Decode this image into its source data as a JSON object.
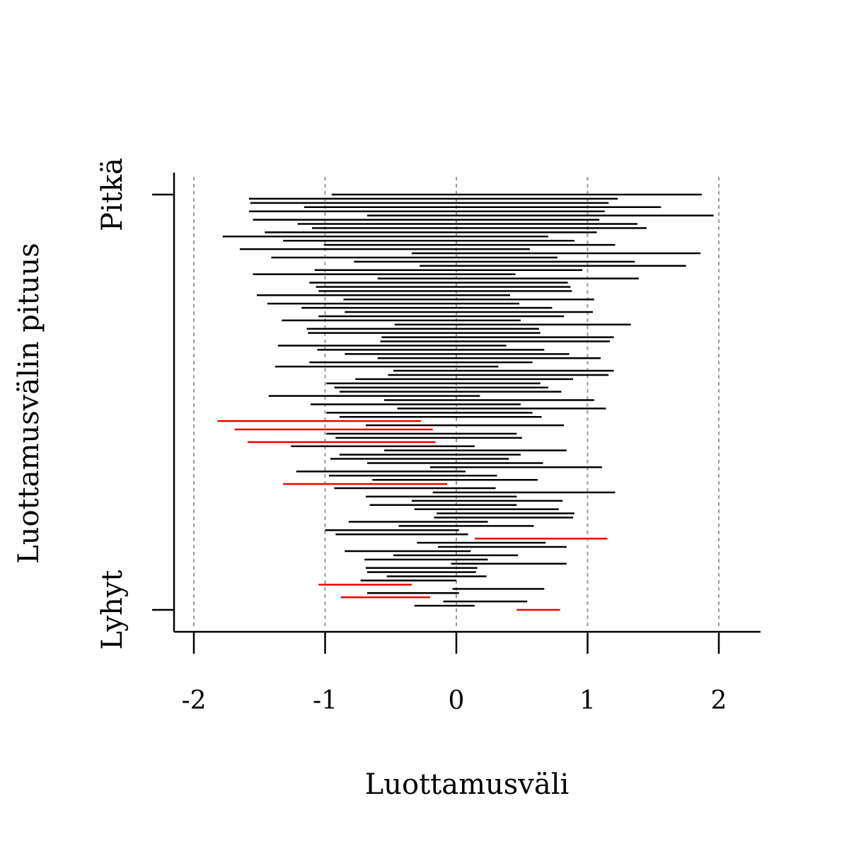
{
  "chart_data": {
    "type": "interval",
    "title": "",
    "xlabel": "Luottamusväli",
    "ylabel": "Luottamusvälin pituus",
    "xlim": [
      -2.15,
      2.32
    ],
    "xticks": [
      -2,
      -1,
      0,
      1,
      2
    ],
    "xtick_labels": [
      "-2",
      "-1",
      "0",
      "1",
      "2"
    ],
    "y_end_labels": {
      "long": "Pitkä",
      "short": "Lyhyt"
    },
    "grid": "vertical dotted at x ticks",
    "colors": {
      "covers_zero": "#000000",
      "misses_zero": "#ee0000",
      "grid": "#999999"
    },
    "intervals": [
      {
        "lo": -0.95,
        "hi": 1.87
      },
      {
        "lo": -1.58,
        "hi": 1.23
      },
      {
        "lo": -1.57,
        "hi": 1.16
      },
      {
        "lo": -1.16,
        "hi": 1.56
      },
      {
        "lo": -1.58,
        "hi": 1.13
      },
      {
        "lo": -0.68,
        "hi": 1.96
      },
      {
        "lo": -1.55,
        "hi": 1.09
      },
      {
        "lo": -1.21,
        "hi": 1.38
      },
      {
        "lo": -1.1,
        "hi": 1.45
      },
      {
        "lo": -1.46,
        "hi": 1.07
      },
      {
        "lo": -1.78,
        "hi": 0.7
      },
      {
        "lo": -1.32,
        "hi": 0.9
      },
      {
        "lo": -1.01,
        "hi": 1.21
      },
      {
        "lo": -1.65,
        "hi": 0.56
      },
      {
        "lo": -0.34,
        "hi": 1.86
      },
      {
        "lo": -1.41,
        "hi": 0.77
      },
      {
        "lo": -0.78,
        "hi": 1.36
      },
      {
        "lo": -0.28,
        "hi": 1.75
      },
      {
        "lo": -1.08,
        "hi": 0.96
      },
      {
        "lo": -1.55,
        "hi": 0.45
      },
      {
        "lo": -0.6,
        "hi": 1.39
      },
      {
        "lo": -1.12,
        "hi": 0.85
      },
      {
        "lo": -1.07,
        "hi": 0.87
      },
      {
        "lo": -1.05,
        "hi": 0.88
      },
      {
        "lo": -1.52,
        "hi": 0.41
      },
      {
        "lo": -0.86,
        "hi": 1.05
      },
      {
        "lo": -1.44,
        "hi": 0.48
      },
      {
        "lo": -1.18,
        "hi": 0.73
      },
      {
        "lo": -0.85,
        "hi": 1.04
      },
      {
        "lo": -1.05,
        "hi": 0.82
      },
      {
        "lo": -1.33,
        "hi": 0.49
      },
      {
        "lo": -0.47,
        "hi": 1.33
      },
      {
        "lo": -1.14,
        "hi": 0.63
      },
      {
        "lo": -1.13,
        "hi": 0.64
      },
      {
        "lo": -0.57,
        "hi": 1.2
      },
      {
        "lo": -0.58,
        "hi": 1.17
      },
      {
        "lo": -1.36,
        "hi": 0.38
      },
      {
        "lo": -1.06,
        "hi": 0.67
      },
      {
        "lo": -0.85,
        "hi": 0.86
      },
      {
        "lo": -0.6,
        "hi": 1.1
      },
      {
        "lo": -1.12,
        "hi": 0.58
      },
      {
        "lo": -1.38,
        "hi": 0.32
      },
      {
        "lo": -0.48,
        "hi": 1.2
      },
      {
        "lo": -0.52,
        "hi": 1.16
      },
      {
        "lo": -0.77,
        "hi": 0.89
      },
      {
        "lo": -0.99,
        "hi": 0.64
      },
      {
        "lo": -0.93,
        "hi": 0.7
      },
      {
        "lo": -0.89,
        "hi": 0.8
      },
      {
        "lo": -1.43,
        "hi": 0.18
      },
      {
        "lo": -0.55,
        "hi": 1.05
      },
      {
        "lo": -1.11,
        "hi": 0.49
      },
      {
        "lo": -0.45,
        "hi": 1.14
      },
      {
        "lo": -0.99,
        "hi": 0.58
      },
      {
        "lo": -0.89,
        "hi": 0.65
      },
      {
        "lo": -1.82,
        "hi": -0.27
      },
      {
        "lo": -0.69,
        "hi": 0.82
      },
      {
        "lo": -1.69,
        "hi": -0.18
      },
      {
        "lo": -0.99,
        "hi": 0.46
      },
      {
        "lo": -0.92,
        "hi": 0.5
      },
      {
        "lo": -1.59,
        "hi": -0.16
      },
      {
        "lo": -1.26,
        "hi": 0.14
      },
      {
        "lo": -0.55,
        "hi": 0.84
      },
      {
        "lo": -0.89,
        "hi": 0.49
      },
      {
        "lo": -0.96,
        "hi": 0.4
      },
      {
        "lo": -0.68,
        "hi": 0.66
      },
      {
        "lo": -0.2,
        "hi": 1.11
      },
      {
        "lo": -1.22,
        "hi": 0.07
      },
      {
        "lo": -0.97,
        "hi": 0.31
      },
      {
        "lo": -0.64,
        "hi": 0.62
      },
      {
        "lo": -1.32,
        "hi": -0.07
      },
      {
        "lo": -0.93,
        "hi": 0.3
      },
      {
        "lo": -0.18,
        "hi": 1.21
      },
      {
        "lo": -0.69,
        "hi": 0.46
      },
      {
        "lo": -0.34,
        "hi": 0.81
      },
      {
        "lo": -0.66,
        "hi": 0.46
      },
      {
        "lo": -0.32,
        "hi": 0.78
      },
      {
        "lo": -0.15,
        "hi": 0.9
      },
      {
        "lo": -0.17,
        "hi": 0.89
      },
      {
        "lo": -0.82,
        "hi": 0.24
      },
      {
        "lo": -0.44,
        "hi": 0.59
      },
      {
        "lo": -1.0,
        "hi": 0.02
      },
      {
        "lo": -0.92,
        "hi": 0.09
      },
      {
        "lo": 0.14,
        "hi": 1.15
      },
      {
        "lo": -0.3,
        "hi": 0.68
      },
      {
        "lo": -0.14,
        "hi": 0.84
      },
      {
        "lo": -0.85,
        "hi": 0.11
      },
      {
        "lo": -0.48,
        "hi": 0.47
      },
      {
        "lo": -0.7,
        "hi": 0.24
      },
      {
        "lo": -0.04,
        "hi": 0.84
      },
      {
        "lo": -0.69,
        "hi": 0.16
      },
      {
        "lo": -0.68,
        "hi": 0.15
      },
      {
        "lo": -0.53,
        "hi": 0.23
      },
      {
        "lo": -0.73,
        "hi": 0.0
      },
      {
        "lo": -1.05,
        "hi": -0.34
      },
      {
        "lo": -0.03,
        "hi": 0.67
      },
      {
        "lo": -0.68,
        "hi": 0.02
      },
      {
        "lo": -0.88,
        "hi": -0.2
      },
      {
        "lo": -0.1,
        "hi": 0.54
      },
      {
        "lo": -0.32,
        "hi": 0.14
      },
      {
        "lo": 0.46,
        "hi": 0.79
      }
    ]
  }
}
